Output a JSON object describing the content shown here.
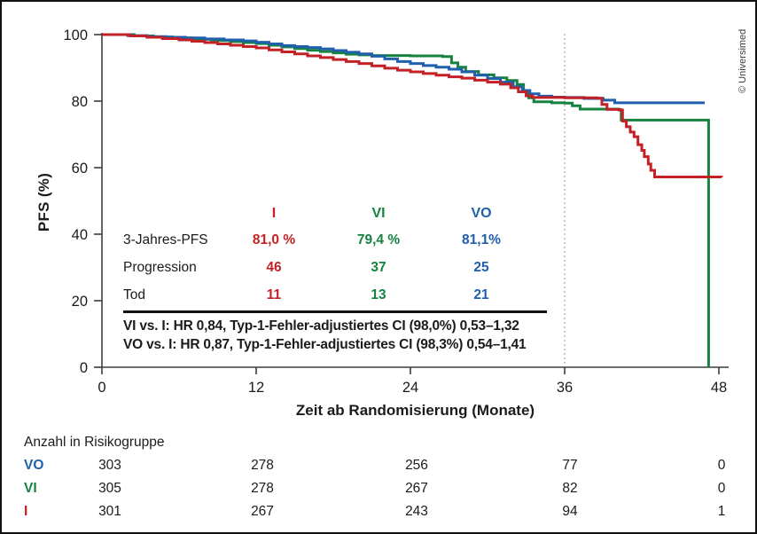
{
  "copyright": "© Universimed",
  "chart_data": {
    "type": "line",
    "subtype": "kaplan-meier-step",
    "xlabel": "Zeit ab Randomisierung (Monate)",
    "ylabel": "PFS (%)",
    "xlim": [
      0,
      48.8
    ],
    "ylim": [
      0,
      100
    ],
    "xticks": [
      "0",
      "12",
      "24",
      "36",
      "48"
    ],
    "xtick_values": [
      0,
      12,
      24,
      36,
      48
    ],
    "yticks": [
      "0",
      "20",
      "40",
      "60",
      "80",
      "100"
    ],
    "ytick_values": [
      0,
      20,
      40,
      60,
      80,
      100
    ],
    "grid": false,
    "reference_line_x": 36,
    "series": [
      {
        "name": "I",
        "color": "#c42127",
        "points": [
          [
            0,
            100
          ],
          [
            2.2,
            99.6
          ],
          [
            3.5,
            99.2
          ],
          [
            4.7,
            98.8
          ],
          [
            6,
            98.4
          ],
          [
            7,
            98
          ],
          [
            8,
            97.6
          ],
          [
            9,
            97.2
          ],
          [
            10,
            96.8
          ],
          [
            11,
            96.4
          ],
          [
            12,
            96
          ],
          [
            13,
            95.4
          ],
          [
            14,
            94.8
          ],
          [
            15,
            94.2
          ],
          [
            16,
            93.6
          ],
          [
            17,
            93.1
          ],
          [
            18,
            92.5
          ],
          [
            19,
            91.9
          ],
          [
            20,
            91.3
          ],
          [
            21,
            90.6
          ],
          [
            22,
            89.9
          ],
          [
            23,
            89.3
          ],
          [
            24,
            88.8
          ],
          [
            25,
            88.3
          ],
          [
            26,
            87.8
          ],
          [
            27,
            87.3
          ],
          [
            28,
            86.9
          ],
          [
            29,
            86.3
          ],
          [
            30,
            85.7
          ],
          [
            31,
            85.1
          ],
          [
            31.8,
            84
          ],
          [
            32.4,
            82.8
          ],
          [
            33,
            81.6
          ],
          [
            33.5,
            81.1
          ],
          [
            36,
            81
          ],
          [
            38.5,
            80.9
          ],
          [
            38.9,
            79
          ],
          [
            39.3,
            77.5
          ],
          [
            40.3,
            77.3
          ],
          [
            40.5,
            74
          ],
          [
            40.8,
            72.3
          ],
          [
            41.1,
            70.7
          ],
          [
            41.4,
            69.3
          ],
          [
            41.7,
            66.9
          ],
          [
            42,
            65.2
          ],
          [
            42.2,
            63.3
          ],
          [
            42.5,
            61.1
          ],
          [
            42.7,
            59.2
          ],
          [
            43,
            57.2
          ],
          [
            48.2,
            57.1
          ]
        ]
      },
      {
        "name": "VI",
        "color": "#15833f",
        "points": [
          [
            0,
            100
          ],
          [
            2.5,
            99.6
          ],
          [
            4,
            99.3
          ],
          [
            5.5,
            99
          ],
          [
            7,
            98.6
          ],
          [
            8.5,
            98.2
          ],
          [
            10,
            97.9
          ],
          [
            11,
            97.6
          ],
          [
            12,
            97.3
          ],
          [
            13,
            96.8
          ],
          [
            14,
            96.3
          ],
          [
            15,
            95.8
          ],
          [
            16,
            95.3
          ],
          [
            17,
            94.9
          ],
          [
            18,
            94.5
          ],
          [
            19,
            94.1
          ],
          [
            20,
            93.9
          ],
          [
            21,
            93.7
          ],
          [
            24,
            93.6
          ],
          [
            26.5,
            93.4
          ],
          [
            27.2,
            91.5
          ],
          [
            27.7,
            90.2
          ],
          [
            28.3,
            88.9
          ],
          [
            29.3,
            87.9
          ],
          [
            30.5,
            87
          ],
          [
            31.5,
            86.2
          ],
          [
            32.3,
            85
          ],
          [
            32.8,
            83
          ],
          [
            33.2,
            81
          ],
          [
            33.6,
            79.8
          ],
          [
            35,
            79.5
          ],
          [
            36,
            79.4
          ],
          [
            36.6,
            78.6
          ],
          [
            37.2,
            77.6
          ],
          [
            40.2,
            77.4
          ],
          [
            40.4,
            74.3
          ],
          [
            47.2,
            74.2
          ],
          [
            47.2,
            0
          ]
        ]
      },
      {
        "name": "VO",
        "color": "#1f5fad",
        "points": [
          [
            0,
            100
          ],
          [
            2,
            99.7
          ],
          [
            3.5,
            99.4
          ],
          [
            5,
            99.2
          ],
          [
            6.5,
            99
          ],
          [
            8,
            98.7
          ],
          [
            9.5,
            98.4
          ],
          [
            11,
            98.1
          ],
          [
            12,
            97.7
          ],
          [
            13,
            97.2
          ],
          [
            14,
            96.7
          ],
          [
            15,
            96.4
          ],
          [
            16,
            96.1
          ],
          [
            17,
            95.7
          ],
          [
            18,
            95.2
          ],
          [
            19,
            94.7
          ],
          [
            20,
            94.2
          ],
          [
            21,
            93.5
          ],
          [
            22,
            92.7
          ],
          [
            23,
            91.9
          ],
          [
            24,
            91.3
          ],
          [
            25,
            90.7
          ],
          [
            26,
            90.2
          ],
          [
            27,
            89.6
          ],
          [
            28,
            88.8
          ],
          [
            29,
            87.8
          ],
          [
            30,
            86.8
          ],
          [
            31,
            85.7
          ],
          [
            32,
            84.3
          ],
          [
            32.7,
            83.2
          ],
          [
            33.3,
            82.2
          ],
          [
            34,
            81.5
          ],
          [
            35,
            81.2
          ],
          [
            36,
            81.1
          ],
          [
            37.5,
            80.8
          ],
          [
            39,
            80.3
          ],
          [
            39.9,
            79.5
          ],
          [
            46.9,
            79.5
          ]
        ]
      }
    ]
  },
  "stats_table": {
    "columns": [
      "I",
      "VI",
      "VO"
    ],
    "column_colors": [
      "#c42127",
      "#15833f",
      "#1f5fad"
    ],
    "rows": [
      {
        "label": "3-Jahres-PFS",
        "values": [
          "81,0 %",
          "79,4 %",
          "81,1%"
        ]
      },
      {
        "label": "Progression",
        "values": [
          "46",
          "37",
          "25"
        ]
      },
      {
        "label": "Tod",
        "values": [
          "11",
          "13",
          "21"
        ]
      }
    ],
    "footnotes": [
      "VI vs. I: HR 0,84, Typ-1-Fehler-adjustiertes CI (98,0%) 0,53–1,32",
      "VO vs. I: HR 0,87, Typ-1-Fehler-adjustiertes CI (98,3%) 0,54–1,41"
    ]
  },
  "risk_table": {
    "title": "Anzahl in Risikogruppe",
    "timepoints": [
      "0",
      "12",
      "24",
      "36",
      "48"
    ],
    "rows": [
      {
        "label": "VO",
        "color": "#1f5fad",
        "values": [
          "303",
          "278",
          "256",
          "77",
          "0"
        ]
      },
      {
        "label": "VI",
        "color": "#15833f",
        "values": [
          "305",
          "278",
          "267",
          "82",
          "0"
        ]
      },
      {
        "label": "I",
        "color": "#c42127",
        "values": [
          "301",
          "267",
          "243",
          "94",
          "1"
        ]
      }
    ]
  }
}
